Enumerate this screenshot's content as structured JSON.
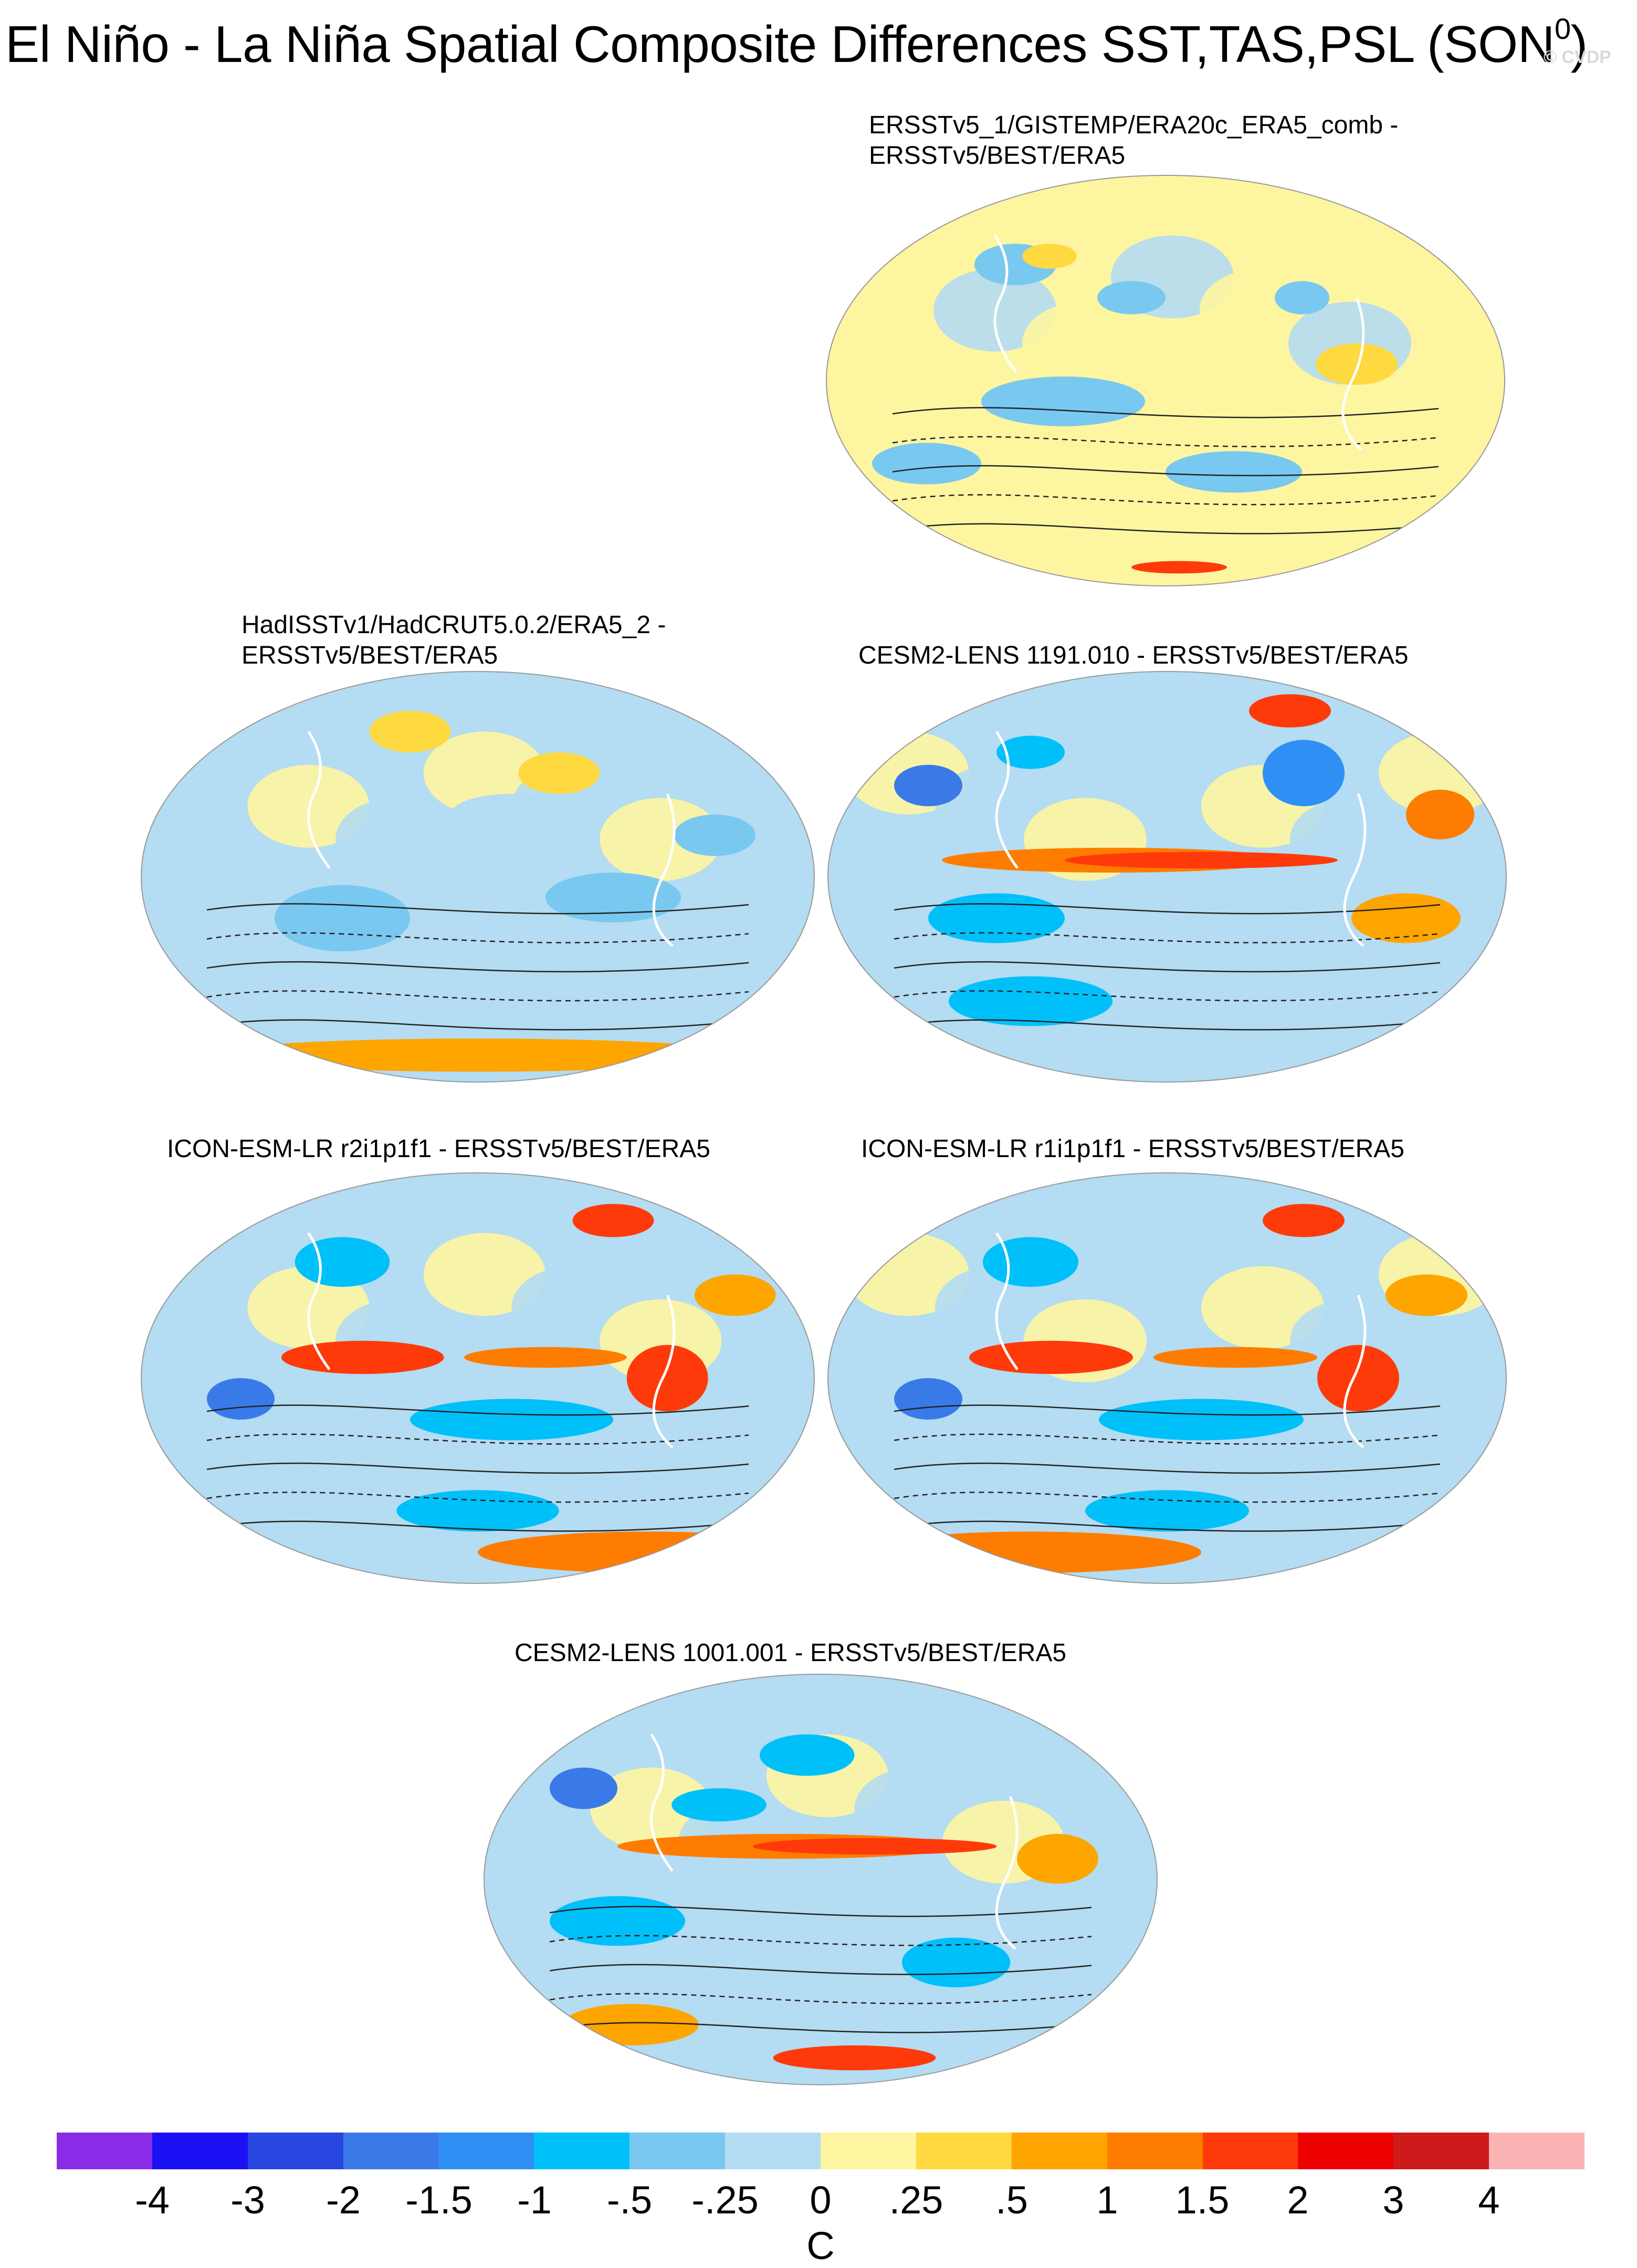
{
  "title": {
    "main": "El Niño - La Niña Spatial Composite Differences SST,TAS,PSL (SON",
    "superscript": "0",
    "close": ")",
    "watermark": "© CVDP"
  },
  "panels": [
    {
      "id": "p1",
      "line1": "ERSSTv5_1/GISTEMP/ERA20c_ERA5_comb -",
      "line2": "ERSSTv5/BEST/ERA5"
    },
    {
      "id": "p2",
      "line1": "HadISSTv1/HadCRUT5.0.2/ERA5_2 -",
      "line2": "ERSSTv5/BEST/ERA5"
    },
    {
      "id": "p3",
      "line1": "CESM2-LENS 1191.010 - ERSSTv5/BEST/ERA5",
      "line2": ""
    },
    {
      "id": "p4",
      "line1": "ICON-ESM-LR r2i1p1f1 - ERSSTv5/BEST/ERA5",
      "line2": ""
    },
    {
      "id": "p5",
      "line1": "ICON-ESM-LR r1i1p1f1 - ERSSTv5/BEST/ERA5",
      "line2": ""
    },
    {
      "id": "p6",
      "line1": "CESM2-LENS 1001.001 - ERSSTv5/BEST/ERA5",
      "line2": ""
    }
  ],
  "colorbar": {
    "colors": [
      "#8a2be8",
      "#1a12f5",
      "#2846e0",
      "#3a7ae8",
      "#2f8ff5",
      "#00c0fa",
      "#79c8f0",
      "#b4dcf2",
      "#fef5a0",
      "#fed940",
      "#fea500",
      "#fe7c00",
      "#fe3a0a",
      "#ed0000",
      "#cd1a1a",
      "#fbb3b3"
    ],
    "ticks": [
      "-4",
      "-3",
      "-2",
      "-1.5",
      "-1",
      "-.5",
      "-.25",
      "0",
      ".25",
      ".5",
      "1",
      "1.5",
      "2",
      "3",
      "4"
    ],
    "unit": "C"
  }
}
